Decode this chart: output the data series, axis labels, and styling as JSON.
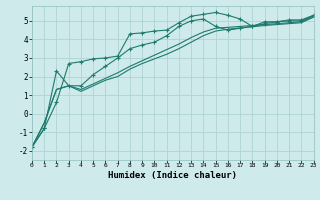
{
  "xlabel": "Humidex (Indice chaleur)",
  "bg_color": "#ceeaea",
  "grid_color": "#aed4d4",
  "line_color": "#1e7a6e",
  "xlim": [
    0,
    23
  ],
  "ylim": [
    -2.5,
    5.8
  ],
  "yticks": [
    -2,
    -1,
    0,
    1,
    2,
    3,
    4,
    5
  ],
  "xticks": [
    0,
    1,
    2,
    3,
    4,
    5,
    6,
    7,
    8,
    9,
    10,
    11,
    12,
    13,
    14,
    15,
    16,
    17,
    18,
    19,
    20,
    21,
    22,
    23
  ],
  "curve1_x": [
    0,
    1,
    2,
    3,
    4,
    5,
    6,
    7,
    8,
    9,
    10,
    11,
    12,
    13,
    14,
    15,
    16,
    17,
    18,
    19,
    20,
    21,
    22,
    23
  ],
  "curve1_y": [
    -1.8,
    -0.8,
    0.6,
    2.7,
    2.8,
    2.95,
    3.0,
    3.1,
    4.3,
    4.35,
    4.45,
    4.5,
    4.9,
    5.25,
    5.35,
    5.45,
    5.3,
    5.1,
    4.7,
    4.95,
    4.95,
    5.05,
    5.05,
    5.3
  ],
  "curve2_x": [
    0,
    1,
    2,
    3,
    4,
    5,
    6,
    7,
    8,
    9,
    10,
    11,
    12,
    13,
    14,
    15,
    16,
    17,
    18,
    19,
    20,
    21,
    22,
    23
  ],
  "curve2_y": [
    -1.8,
    -0.8,
    2.3,
    1.5,
    1.5,
    2.1,
    2.55,
    3.0,
    3.5,
    3.7,
    3.85,
    4.2,
    4.7,
    5.0,
    5.1,
    4.7,
    4.5,
    4.6,
    4.7,
    4.85,
    4.95,
    5.0,
    5.0,
    5.3
  ],
  "curve3_x": [
    0,
    1,
    2,
    3,
    4,
    5,
    6,
    7,
    8,
    9,
    10,
    11,
    12,
    13,
    14,
    15,
    16,
    17,
    18,
    19,
    20,
    21,
    22,
    23
  ],
  "curve3_y": [
    -1.8,
    -0.5,
    1.3,
    1.5,
    1.3,
    1.6,
    1.9,
    2.2,
    2.55,
    2.85,
    3.15,
    3.45,
    3.75,
    4.1,
    4.4,
    4.6,
    4.65,
    4.7,
    4.75,
    4.8,
    4.85,
    4.9,
    4.95,
    5.25
  ],
  "curve4_x": [
    0,
    1,
    2,
    3,
    4,
    5,
    6,
    7,
    8,
    9,
    10,
    11,
    12,
    13,
    14,
    15,
    16,
    17,
    18,
    19,
    20,
    21,
    22,
    23
  ],
  "curve4_y": [
    -1.8,
    -0.5,
    1.3,
    1.5,
    1.2,
    1.5,
    1.8,
    2.0,
    2.4,
    2.7,
    2.95,
    3.2,
    3.5,
    3.85,
    4.2,
    4.45,
    4.55,
    4.62,
    4.68,
    4.75,
    4.8,
    4.85,
    4.9,
    5.2
  ]
}
